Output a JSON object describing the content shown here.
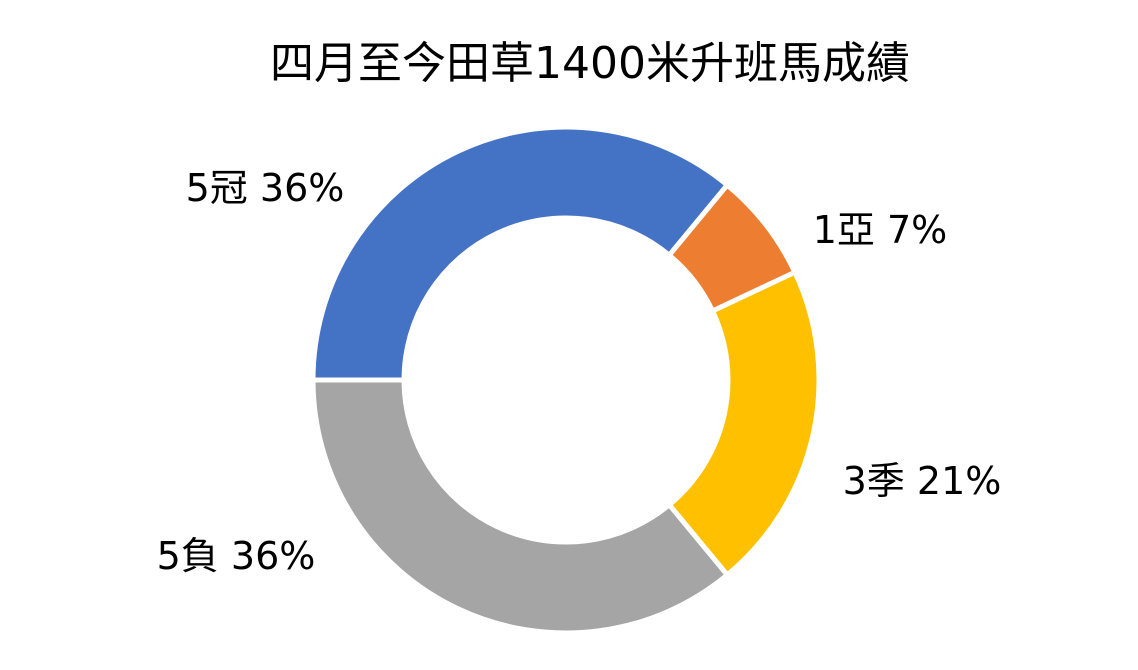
{
  "chart_data": {
    "type": "donut",
    "title": "四月至今田草1400米升班馬成績",
    "categories": [
      "5冠",
      "1亞",
      "3季",
      "5負"
    ],
    "values": [
      36,
      7,
      21,
      36
    ],
    "value_labels": [
      "36%",
      "7%",
      "21%",
      "36%"
    ],
    "colors": [
      "#4472c4",
      "#ed7d31",
      "#ffc000",
      "#a5a5a5"
    ]
  }
}
